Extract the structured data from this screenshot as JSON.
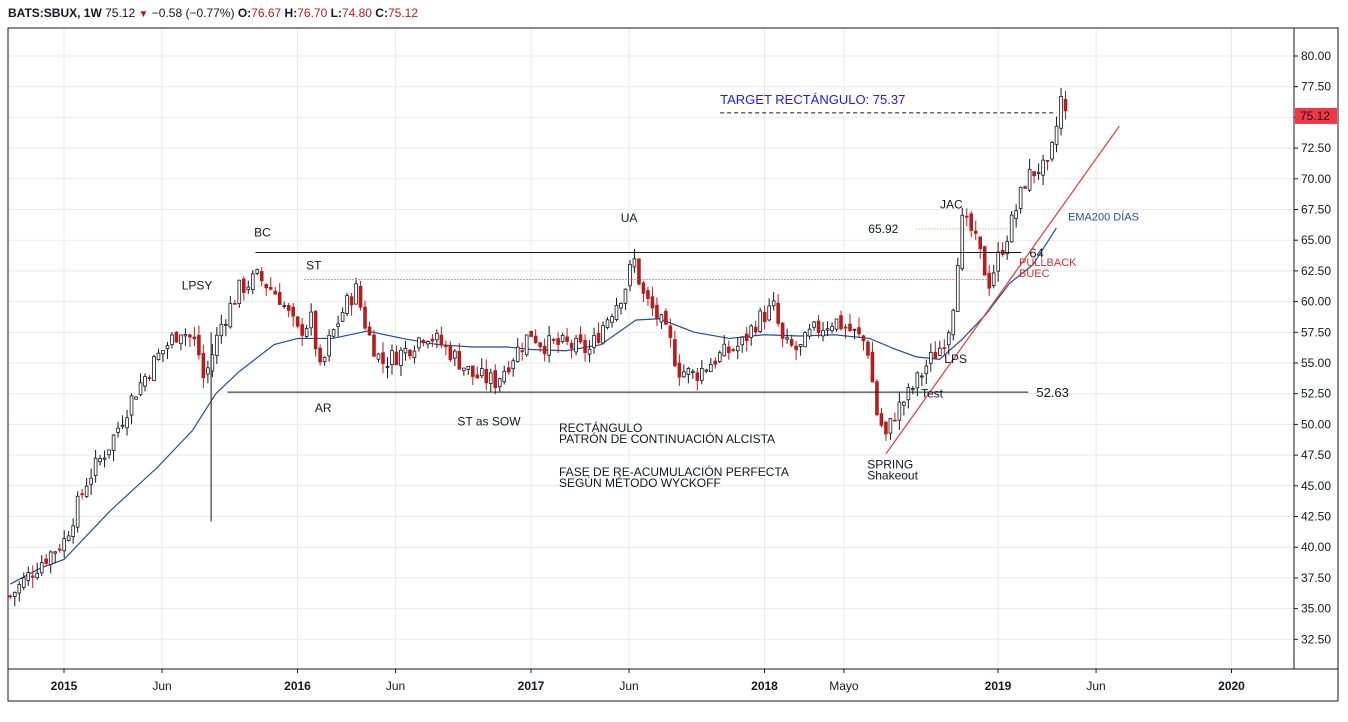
{
  "header": {
    "symbol": "BATS:SBUX, 1W",
    "last": "75.12",
    "change": "−0.58 (−0.77%)",
    "open_label": "O:",
    "open": "76.67",
    "high_label": "H:",
    "high": "76.70",
    "low_label": "L:",
    "low": "74.80",
    "close_label": "C:",
    "close": "75.12"
  },
  "chart_data": {
    "type": "candlestick",
    "symbol": "BATS:SBUX",
    "interval": "1W",
    "ylim": [
      30.5,
      82.5
    ],
    "y_ticks": [
      "32.50",
      "35.00",
      "37.50",
      "40.00",
      "42.50",
      "45.00",
      "47.50",
      "50.00",
      "52.50",
      "55.00",
      "57.50",
      "60.00",
      "62.50",
      "65.00",
      "67.50",
      "70.00",
      "72.50",
      "75.00",
      "77.50",
      "80.00"
    ],
    "x_ticks": [
      {
        "label": "2015",
        "t": 2015.0,
        "bold": true
      },
      {
        "label": "Jun",
        "t": 2015.42,
        "bold": false
      },
      {
        "label": "2016",
        "t": 2016.0,
        "bold": true
      },
      {
        "label": "Jun",
        "t": 2016.42,
        "bold": false
      },
      {
        "label": "2017",
        "t": 2017.0,
        "bold": true
      },
      {
        "label": "Jun",
        "t": 2017.42,
        "bold": false
      },
      {
        "label": "2018",
        "t": 2018.0,
        "bold": true
      },
      {
        "label": "Mayo",
        "t": 2018.34,
        "bold": false
      },
      {
        "label": "2019",
        "t": 2019.0,
        "bold": true
      },
      {
        "label": "Jun",
        "t": 2019.42,
        "bold": false
      },
      {
        "label": "2020",
        "t": 2020.0,
        "bold": true
      }
    ],
    "x_range": [
      2014.77,
      2020.25
    ],
    "last_price": {
      "label": "75.12",
      "value": 75.12
    },
    "anchors": [
      [
        2014.77,
        36.0
      ],
      [
        2014.9,
        38.8
      ],
      [
        2015.0,
        40.5
      ],
      [
        2015.1,
        45.5
      ],
      [
        2015.2,
        48.5
      ],
      [
        2015.3,
        52.5
      ],
      [
        2015.4,
        55.5
      ],
      [
        2015.5,
        57.8
      ],
      [
        2015.57,
        56.5
      ],
      [
        2015.6,
        53.5
      ],
      [
        2015.67,
        58.0
      ],
      [
        2015.75,
        61.0
      ],
      [
        2015.83,
        62.0
      ],
      [
        2015.92,
        60.5
      ],
      [
        2016.0,
        57.5
      ],
      [
        2016.06,
        58.5
      ],
      [
        2016.1,
        54.0
      ],
      [
        2016.13,
        56.5
      ],
      [
        2016.2,
        59.5
      ],
      [
        2016.25,
        61.0
      ],
      [
        2016.3,
        57.5
      ],
      [
        2016.36,
        55.0
      ],
      [
        2016.46,
        56.0
      ],
      [
        2016.55,
        57.5
      ],
      [
        2016.65,
        56.0
      ],
      [
        2016.75,
        54.0
      ],
      [
        2016.85,
        53.5
      ],
      [
        2016.92,
        55.5
      ],
      [
        2017.0,
        57.5
      ],
      [
        2017.05,
        56.5
      ],
      [
        2017.15,
        56.5
      ],
      [
        2017.25,
        56.0
      ],
      [
        2017.32,
        58.5
      ],
      [
        2017.4,
        61.0
      ],
      [
        2017.44,
        63.5
      ],
      [
        2017.48,
        60.5
      ],
      [
        2017.55,
        58.5
      ],
      [
        2017.6,
        56.5
      ],
      [
        2017.63,
        54.5
      ],
      [
        2017.7,
        54.0
      ],
      [
        2017.8,
        55.5
      ],
      [
        2017.9,
        56.5
      ],
      [
        2017.97,
        58.5
      ],
      [
        2018.04,
        59.5
      ],
      [
        2018.08,
        56.5
      ],
      [
        2018.15,
        56.0
      ],
      [
        2018.2,
        57.5
      ],
      [
        2018.3,
        58.5
      ],
      [
        2018.38,
        57.5
      ],
      [
        2018.44,
        56.5
      ],
      [
        2018.48,
        51.0
      ],
      [
        2018.52,
        49.0
      ],
      [
        2018.56,
        51.0
      ],
      [
        2018.62,
        52.5
      ],
      [
        2018.7,
        55.0
      ],
      [
        2018.76,
        56.5
      ],
      [
        2018.8,
        58.5
      ],
      [
        2018.82,
        62.0
      ],
      [
        2018.84,
        66.5
      ],
      [
        2018.88,
        66.0
      ],
      [
        2018.92,
        64.0
      ],
      [
        2018.96,
        61.5
      ],
      [
        2019.0,
        63.5
      ],
      [
        2019.06,
        66.5
      ],
      [
        2019.12,
        70.0
      ],
      [
        2019.18,
        71.0
      ],
      [
        2019.21,
        70.5
      ],
      [
        2019.24,
        73.0
      ],
      [
        2019.27,
        76.5
      ],
      [
        2019.29,
        75.12
      ]
    ],
    "ema_points": [
      [
        2014.77,
        37.0
      ],
      [
        2014.9,
        38.3
      ],
      [
        2015.0,
        39.0
      ],
      [
        2015.2,
        43.0
      ],
      [
        2015.4,
        46.5
      ],
      [
        2015.55,
        49.5
      ],
      [
        2015.65,
        52.5
      ],
      [
        2015.75,
        54.3
      ],
      [
        2015.9,
        56.5
      ],
      [
        2016.0,
        57.0
      ],
      [
        2016.15,
        57.0
      ],
      [
        2016.3,
        57.6
      ],
      [
        2016.45,
        57.0
      ],
      [
        2016.6,
        56.5
      ],
      [
        2016.75,
        56.3
      ],
      [
        2016.9,
        56.3
      ],
      [
        2017.0,
        56.1
      ],
      [
        2017.15,
        56.0
      ],
      [
        2017.3,
        56.5
      ],
      [
        2017.45,
        58.5
      ],
      [
        2017.55,
        58.6
      ],
      [
        2017.7,
        57.5
      ],
      [
        2017.85,
        57.0
      ],
      [
        2018.0,
        57.3
      ],
      [
        2018.15,
        57.2
      ],
      [
        2018.3,
        57.3
      ],
      [
        2018.45,
        57.0
      ],
      [
        2018.55,
        56.2
      ],
      [
        2018.65,
        55.5
      ],
      [
        2018.75,
        55.3
      ],
      [
        2018.85,
        57.0
      ],
      [
        2018.95,
        59.0
      ],
      [
        2019.05,
        61.5
      ],
      [
        2019.15,
        63.0
      ],
      [
        2019.25,
        66.0
      ]
    ],
    "horizontal_lines": [
      {
        "name": "resistance",
        "value": 64.0,
        "from": 2015.82,
        "to": 2019.1,
        "style": "solid",
        "color": "#131722",
        "label": "64"
      },
      {
        "name": "support",
        "value": 52.63,
        "from": 2015.7,
        "to": 2019.13,
        "style": "solid",
        "color": "#131722",
        "label": "52.63"
      },
      {
        "name": "st-level",
        "value": 61.8,
        "from": 2016.03,
        "to": 2018.96,
        "style": "dotted",
        "color": "#d32f2f"
      },
      {
        "name": "jac-level",
        "value": 65.92,
        "from": 2018.65,
        "to": 2019.05,
        "style": "dotted",
        "color": "#8bc34a",
        "label": "65.92",
        "label_color": "#7cb342"
      },
      {
        "name": "target",
        "value": 75.37,
        "from": 2017.81,
        "to": 2019.25,
        "style": "dashed",
        "color": "#131722"
      }
    ],
    "trendline": {
      "from": [
        2018.52,
        47.6
      ],
      "to": [
        2019.52,
        74.3
      ],
      "color": "#e53935"
    },
    "annotations": [
      {
        "text": "LPSY",
        "t": 2015.57,
        "v": 61.0,
        "anchor": "middle"
      },
      {
        "text": "BC",
        "t": 2015.85,
        "v": 65.3,
        "anchor": "middle"
      },
      {
        "text": "ST",
        "t": 2016.07,
        "v": 62.6,
        "anchor": "middle"
      },
      {
        "text": "AR",
        "t": 2016.11,
        "v": 51.0,
        "anchor": "middle"
      },
      {
        "text": "ST as SOW",
        "t": 2016.82,
        "v": 49.9,
        "anchor": "middle"
      },
      {
        "text": "UA",
        "t": 2017.42,
        "v": 66.5,
        "anchor": "middle"
      },
      {
        "text": "JAC",
        "t": 2018.8,
        "v": 67.6,
        "anchor": "middle"
      },
      {
        "text": "LPS",
        "t": 2018.77,
        "v": 55.0,
        "anchor": "start"
      },
      {
        "text": "Test",
        "t": 2018.67,
        "v": 52.2,
        "anchor": "start"
      },
      {
        "text": "SPRING",
        "t": 2018.44,
        "v": 46.4,
        "anchor": "start"
      },
      {
        "text": "Shakeout",
        "t": 2018.44,
        "v": 45.5,
        "anchor": "start"
      },
      {
        "text": "RECTÁNGULO",
        "t": 2017.12,
        "v": 49.4,
        "anchor": "start"
      },
      {
        "text": "PATRÓN DE CONTINUACIÓN ALCISTA",
        "t": 2017.12,
        "v": 48.5,
        "anchor": "start"
      },
      {
        "text": "FASE DE RE-ACUMULACIÓN PERFECTA",
        "t": 2017.12,
        "v": 45.8,
        "anchor": "start"
      },
      {
        "text": "SEGÚN MÉTODO WYCKOFF",
        "t": 2017.12,
        "v": 44.9,
        "anchor": "start"
      }
    ],
    "color_annotations": [
      {
        "text": "TARGET RECTÁNGULO: 75.37",
        "t": 2017.81,
        "v": 76.1,
        "color": "#1a1aff",
        "size": 13
      },
      {
        "text": "EMA200 DÍAS",
        "t": 2019.3,
        "v": 66.6,
        "color": "#1f4e99",
        "size": 11
      },
      {
        "text": "PULLBACK",
        "t": 2019.09,
        "v": 62.9,
        "color": "#d32f2f",
        "size": 11
      },
      {
        "text": "BUEC",
        "t": 2019.09,
        "v": 62.0,
        "color": "#d32f2f",
        "size": 11
      }
    ],
    "colors": {
      "up": "#131722",
      "down": "#b71c1c",
      "ema": "#1f4e99",
      "grid": "#e9e9ea"
    }
  }
}
